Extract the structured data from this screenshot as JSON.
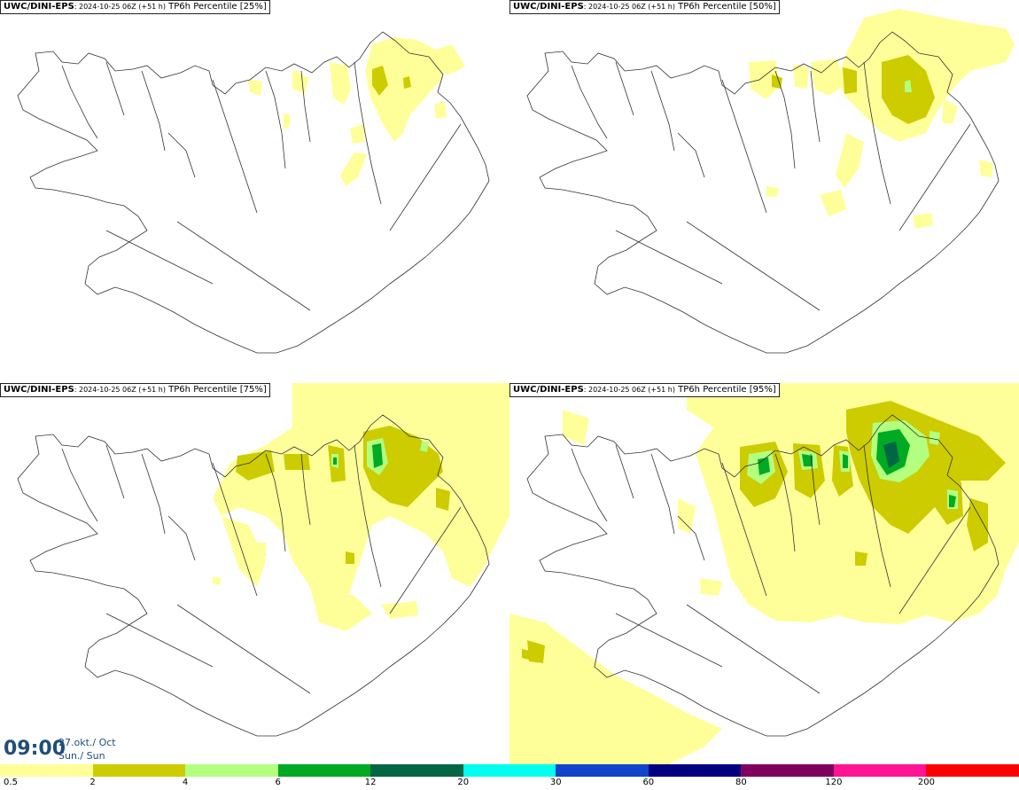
{
  "panels": [
    {
      "source": "UWC/DINI-EPS",
      "run": ": 2024-10-25 06Z (+51 h)",
      "product": "TP6h Percentile [25%]"
    },
    {
      "source": "UWC/DINI-EPS",
      "run": ": 2024-10-25 06Z (+51 h)",
      "product": "TP6h Percentile [50%]"
    },
    {
      "source": "UWC/DINI-EPS",
      "run": ": 2024-10-25 06Z (+51 h)",
      "product": "TP6h Percentile [75%]"
    },
    {
      "source": "UWC/DINI-EPS",
      "run": ": 2024-10-25 06Z (+51 h)",
      "product": "TP6h Percentile [95%]"
    }
  ],
  "valid_time": {
    "time": "09:00",
    "date": "27.okt./ Oct",
    "day": "Sun./ Sun"
  },
  "legend": {
    "colors": [
      "#ffff99",
      "#cccc00",
      "#b3ff80",
      "#00aa22",
      "#006644",
      "#00ffee",
      "#1144cc",
      "#000080",
      "#800060",
      "#ff1493",
      "#ff0000"
    ],
    "ticks": [
      "0.5",
      "2",
      "4",
      "6",
      "12",
      "20",
      "30",
      "60",
      "80",
      "120",
      "200"
    ]
  },
  "colors": {
    "light": "#ffff99",
    "olive": "#cccc00",
    "lightgreen": "#b3ff80",
    "green": "#00aa22",
    "darkgreen": "#006644",
    "coast": "#222222",
    "titlecolor": "#1f4e79"
  }
}
